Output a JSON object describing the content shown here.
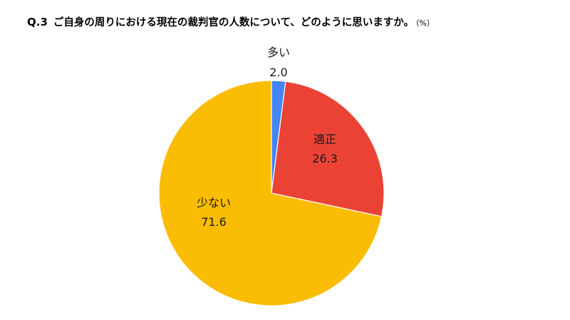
{
  "title": {
    "prefix": "Q.3",
    "text": "ご自身の周りにおける現在の裁判官の人数について、どのように思いますか。",
    "unit": "（%）"
  },
  "chart_data": {
    "type": "pie",
    "title": "Q.3 ご自身の周りにおける現在の裁判官の人数について、どのように思いますか。（%）",
    "unit": "%",
    "slices": [
      {
        "label": "多い",
        "value": 2.0,
        "value_text": "2.0",
        "color": "#4285f4"
      },
      {
        "label": "適正",
        "value": 26.3,
        "value_text": "26.3",
        "color": "#ea4335"
      },
      {
        "label": "少ない",
        "value": 71.6,
        "value_text": "71.6",
        "color": "#fbbc04"
      }
    ],
    "start_angle": "12 o'clock",
    "direction": "clockwise",
    "legend": "none"
  }
}
